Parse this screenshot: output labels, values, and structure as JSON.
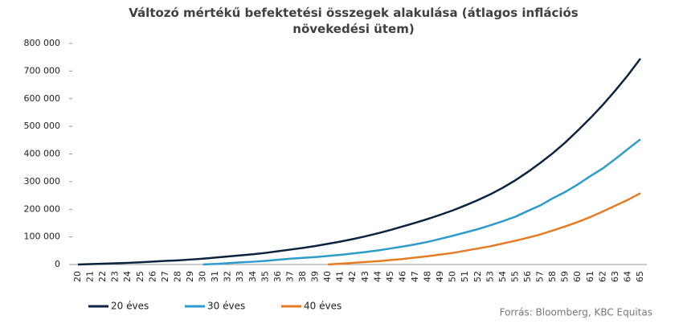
{
  "chart_data": {
    "type": "line",
    "title": "Változó mértékű befektetési  összegek alakulása (átlagos inflációs növekedési ütem)",
    "annotation": "Forrás: Bloomberg,  KBC Equitas",
    "categories": [
      "20",
      "21",
      "22",
      "23",
      "24",
      "25",
      "26",
      "27",
      "28",
      "29",
      "30",
      "31",
      "32",
      "33",
      "34",
      "35",
      "36",
      "37",
      "38",
      "39",
      "40",
      "41",
      "42",
      "43",
      "44",
      "45",
      "46",
      "47",
      "48",
      "49",
      "50",
      "51",
      "52",
      "53",
      "54",
      "55",
      "56",
      "57",
      "58",
      "59",
      "60",
      "61",
      "62",
      "63",
      "64",
      "65"
    ],
    "series": [
      {
        "name": "20 éves",
        "color": "#0c2340",
        "values": [
          0,
          1500,
          3000,
          4500,
          6000,
          8000,
          10500,
          13000,
          15000,
          18000,
          21000,
          25000,
          29000,
          33000,
          37000,
          42000,
          48000,
          54000,
          60000,
          67000,
          75000,
          83000,
          92000,
          102000,
          113000,
          125000,
          138000,
          151000,
          165000,
          180000,
          196000,
          214000,
          233000,
          254000,
          278000,
          305000,
          335000,
          368000,
          403000,
          442000,
          485000,
          530000,
          578000,
          630000,
          685000,
          745000
        ]
      },
      {
        "name": "30 éves",
        "color": "#2e9cca",
        "values": [
          null,
          null,
          null,
          null,
          null,
          null,
          null,
          null,
          null,
          null,
          0,
          2000,
          5000,
          7500,
          10000,
          13000,
          17000,
          21000,
          24000,
          27000,
          31000,
          35000,
          40000,
          45000,
          51000,
          58000,
          65000,
          73000,
          82000,
          93000,
          104000,
          116000,
          128000,
          142000,
          157000,
          173000,
          194000,
          214000,
          240000,
          263000,
          290000,
          320000,
          348000,
          382000,
          418000,
          453000
        ]
      },
      {
        "name": "40 éves",
        "color": "#e57c23",
        "values": [
          null,
          null,
          null,
          null,
          null,
          null,
          null,
          null,
          null,
          null,
          null,
          null,
          null,
          null,
          null,
          null,
          null,
          null,
          null,
          null,
          0,
          3000,
          6000,
          9000,
          12000,
          16000,
          20000,
          25000,
          30000,
          36000,
          42000,
          50000,
          58000,
          66000,
          76000,
          86000,
          97000,
          109000,
          123000,
          138000,
          154000,
          172000,
          192000,
          213000,
          234000,
          258000
        ]
      }
    ],
    "ylim": [
      0,
      800000
    ],
    "yticks": [
      0,
      {
        "value": 100000,
        "label": "100 000"
      },
      {
        "value": 200000,
        "label": "200 000"
      },
      {
        "value": 300000,
        "label": "300 000"
      },
      {
        "value": 400000,
        "label": "400 000"
      },
      {
        "value": 500000,
        "label": "500 000"
      },
      {
        "value": 600000,
        "label": "600 000"
      },
      {
        "value": 700000,
        "label": "700 000"
      },
      {
        "value": 800000,
        "label": "800 000"
      }
    ],
    "legend": "bottom"
  }
}
